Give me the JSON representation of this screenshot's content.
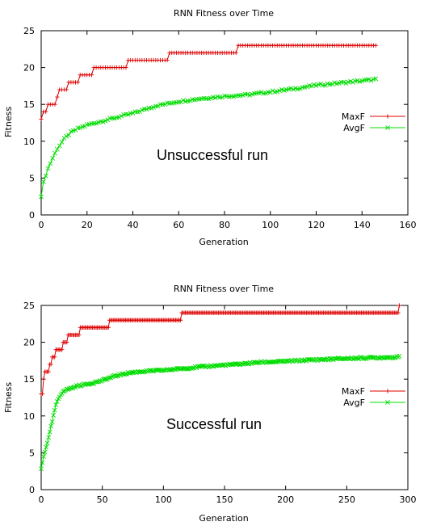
{
  "colors": {
    "max": "#dd0000",
    "avg": "#00dd00",
    "axis": "#000000"
  },
  "chart_data": [
    {
      "type": "line",
      "title": "RNN Fitness over Time",
      "xlabel": "Generation",
      "ylabel": "Fitness",
      "xlim": [
        0,
        160
      ],
      "ylim": [
        0,
        25
      ],
      "xticks": [
        0,
        20,
        40,
        60,
        80,
        100,
        120,
        140,
        160
      ],
      "yticks": [
        0,
        5,
        10,
        15,
        20,
        25
      ],
      "grid": false,
      "legend_position": "right",
      "annotation": "Unsuccessful run",
      "series": [
        {
          "name": "MaxF",
          "marker": "plus",
          "x_max": 146,
          "points": [
            [
              0,
              13
            ],
            [
              1,
              14
            ],
            [
              3,
              15
            ],
            [
              7,
              16
            ],
            [
              8,
              17
            ],
            [
              12,
              18
            ],
            [
              17,
              19
            ],
            [
              23,
              20
            ],
            [
              38,
              21
            ],
            [
              56,
              22
            ],
            [
              86,
              23
            ],
            [
              146,
              23
            ]
          ]
        },
        {
          "name": "AvgF",
          "marker": "cross",
          "x_max": 146,
          "points": [
            [
              0,
              2.6
            ],
            [
              1,
              4.4
            ],
            [
              2,
              5.4
            ],
            [
              3,
              6.3
            ],
            [
              5,
              7.7
            ],
            [
              7,
              9
            ],
            [
              10,
              10.3
            ],
            [
              13,
              11.2
            ],
            [
              16,
              11.7
            ],
            [
              20,
              12.2
            ],
            [
              25,
              12.6
            ],
            [
              30,
              13
            ],
            [
              35,
              13.4
            ],
            [
              40,
              13.8
            ],
            [
              45,
              14.3
            ],
            [
              50,
              14.8
            ],
            [
              55,
              15.1
            ],
            [
              60,
              15.4
            ],
            [
              70,
              15.8
            ],
            [
              80,
              16.1
            ],
            [
              90,
              16.3
            ],
            [
              100,
              16.7
            ],
            [
              110,
              17.1
            ],
            [
              120,
              17.6
            ],
            [
              130,
              17.9
            ],
            [
              140,
              18.2
            ],
            [
              146,
              18.4
            ]
          ]
        }
      ]
    },
    {
      "type": "line",
      "title": "RNN Fitness over Time",
      "xlabel": "Generation",
      "ylabel": "Fitness",
      "xlim": [
        0,
        300
      ],
      "ylim": [
        0,
        25
      ],
      "xticks": [
        0,
        50,
        100,
        150,
        200,
        250,
        300
      ],
      "yticks": [
        0,
        5,
        10,
        15,
        20,
        25
      ],
      "grid": false,
      "legend_position": "right",
      "annotation": "Successful run",
      "series": [
        {
          "name": "MaxF",
          "marker": "plus",
          "x_max": 293,
          "points": [
            [
              0,
              13
            ],
            [
              2,
              15
            ],
            [
              3,
              16
            ],
            [
              7,
              17
            ],
            [
              9,
              18
            ],
            [
              12,
              19
            ],
            [
              18,
              20
            ],
            [
              22,
              21
            ],
            [
              32,
              22
            ],
            [
              56,
              23
            ],
            [
              115,
              24
            ],
            [
              290,
              24
            ],
            [
              293,
              25
            ]
          ]
        },
        {
          "name": "AvgF",
          "marker": "cross",
          "x_max": 293,
          "points": [
            [
              0,
              2.8
            ],
            [
              2,
              4.5
            ],
            [
              4,
              5.8
            ],
            [
              6,
              7
            ],
            [
              8,
              8.5
            ],
            [
              10,
              10
            ],
            [
              12,
              11.5
            ],
            [
              15,
              12.6
            ],
            [
              18,
              13.4
            ],
            [
              25,
              13.8
            ],
            [
              30,
              14.1
            ],
            [
              40,
              14.4
            ],
            [
              50,
              14.8
            ],
            [
              60,
              15.4
            ],
            [
              70,
              15.8
            ],
            [
              80,
              16
            ],
            [
              90,
              16.1
            ],
            [
              100,
              16.2
            ],
            [
              120,
              16.5
            ],
            [
              140,
              16.8
            ],
            [
              160,
              17
            ],
            [
              180,
              17.3
            ],
            [
              200,
              17.4
            ],
            [
              220,
              17.6
            ],
            [
              250,
              17.8
            ],
            [
              270,
              17.9
            ],
            [
              293,
              18
            ]
          ]
        }
      ]
    }
  ]
}
